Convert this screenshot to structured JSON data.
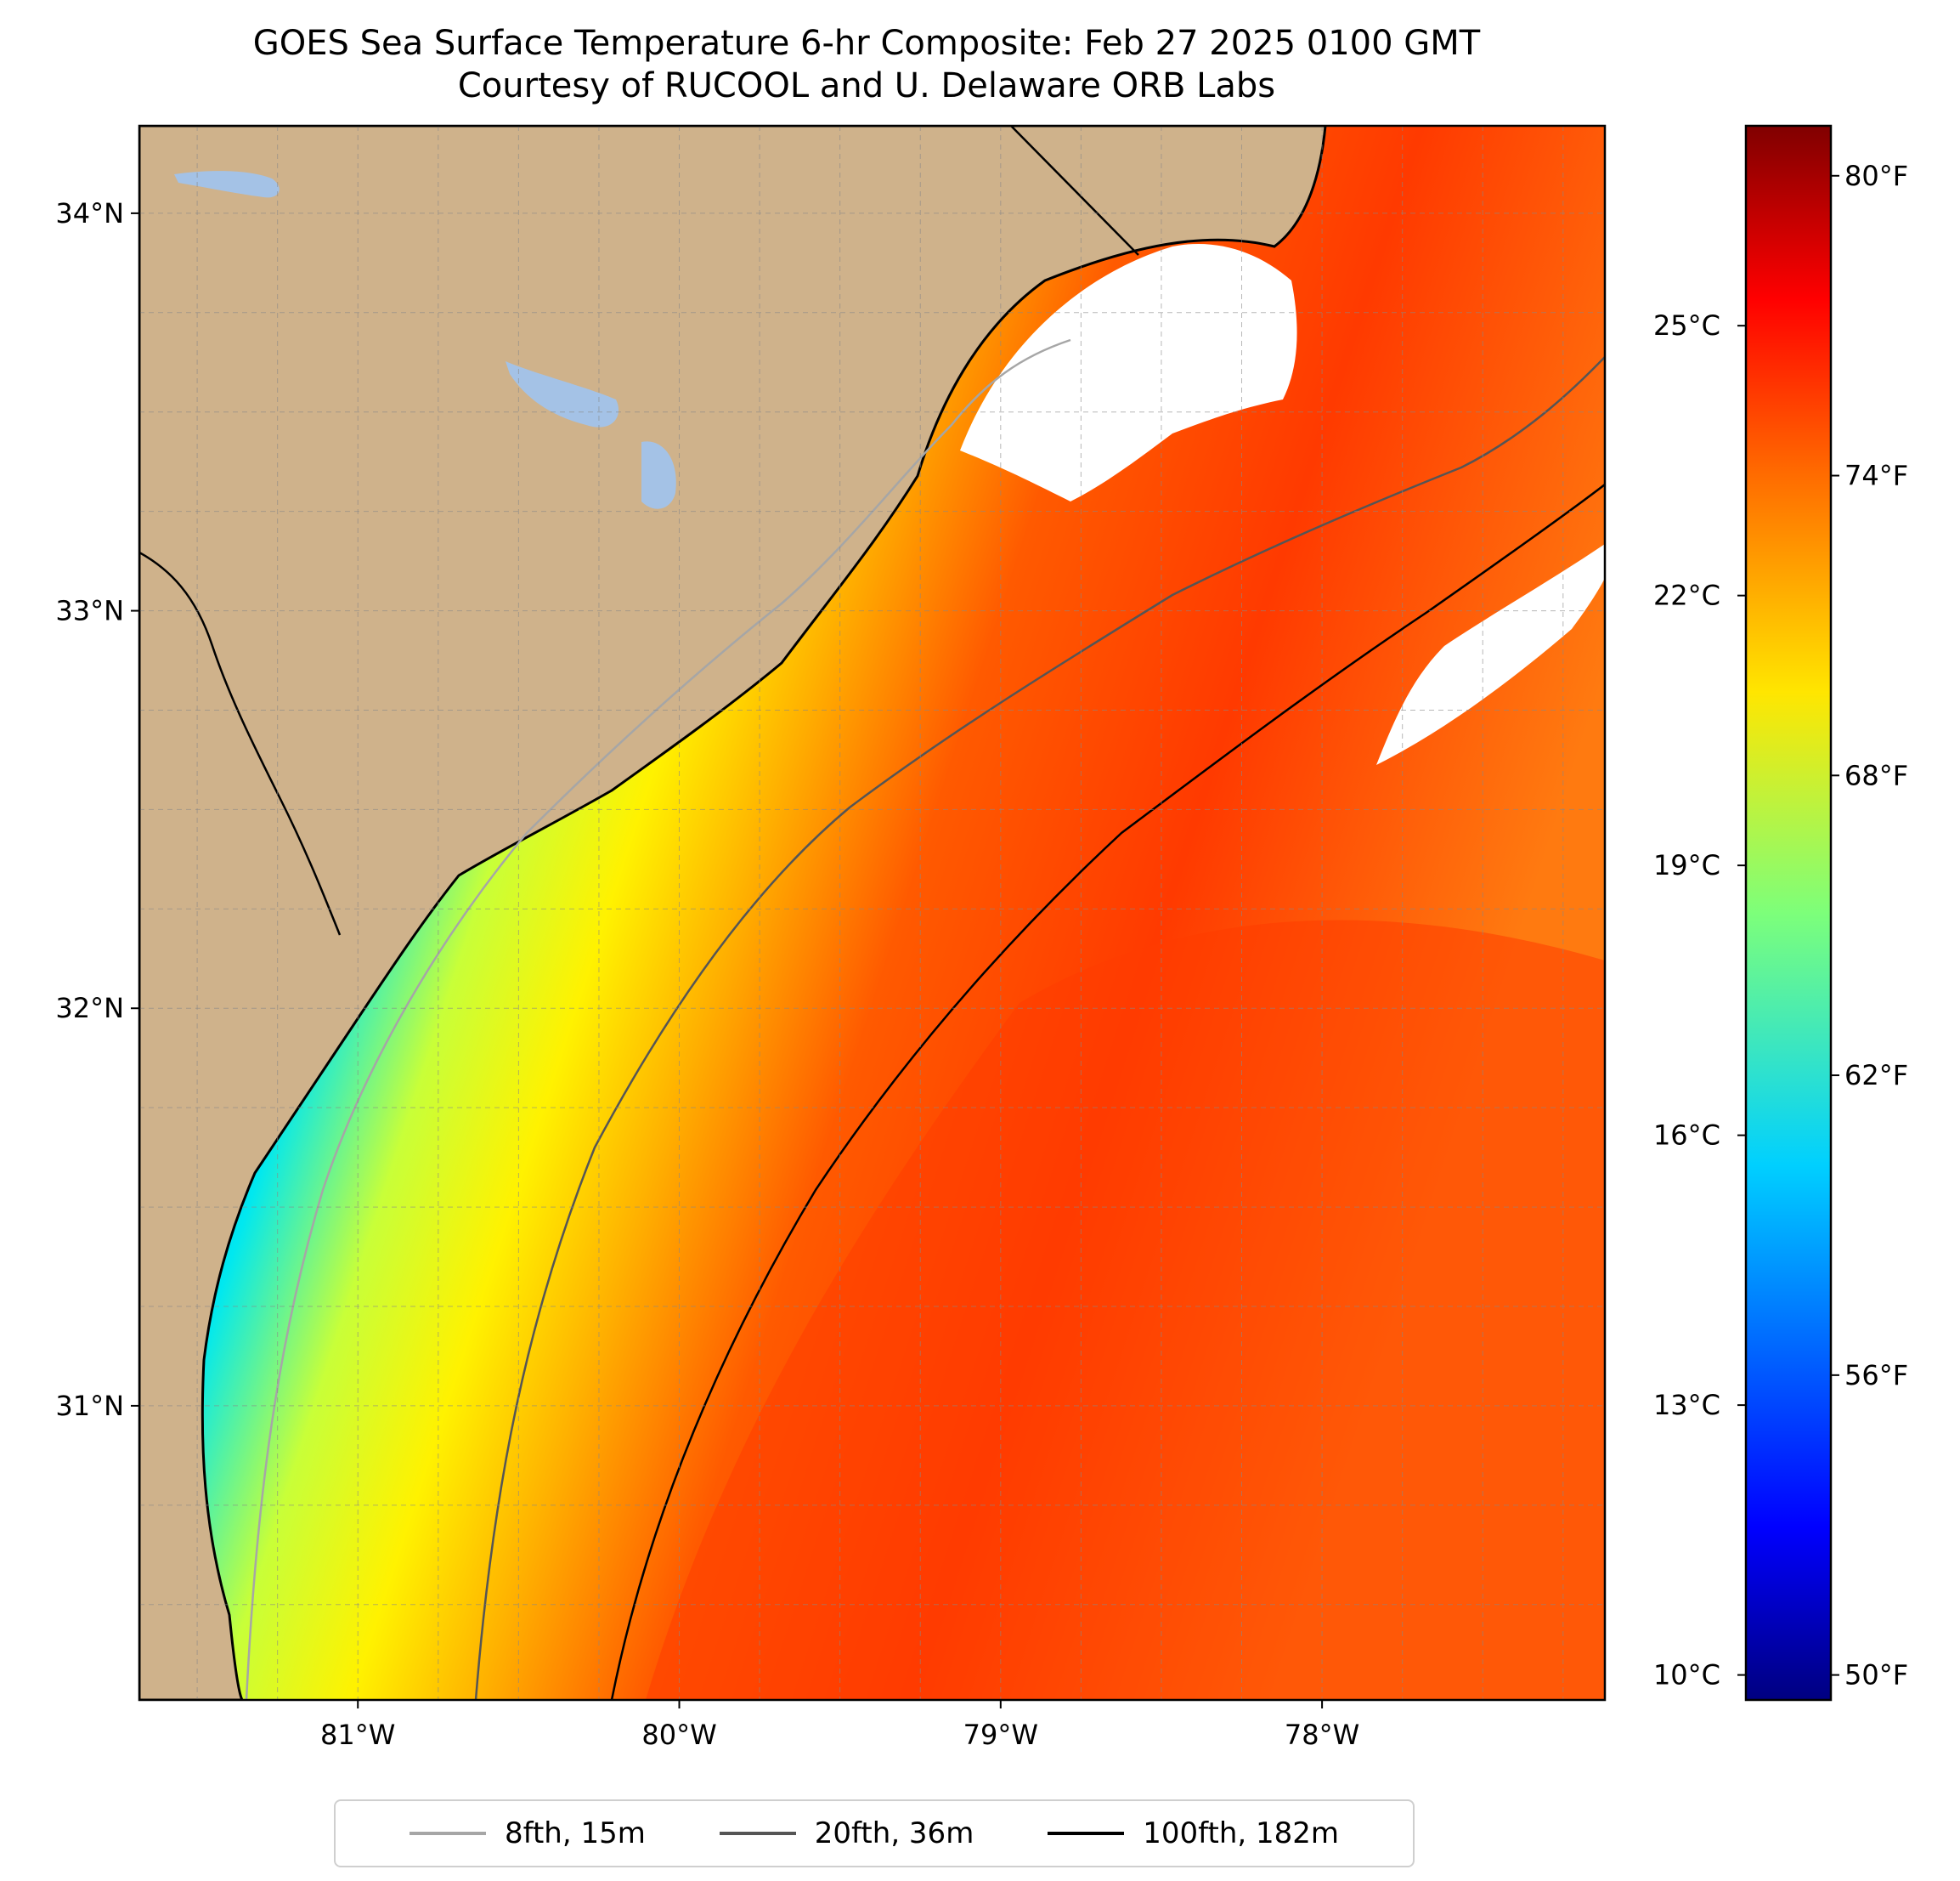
{
  "title": {
    "line1": "GOES Sea Surface Temperature 6-hr Composite: Feb 27 2025 0100 GMT",
    "line2": "Courtesy of RUCOOL and U. Delaware ORB Labs"
  },
  "axes": {
    "lat_ticks": [
      "34°N",
      "33°N",
      "32°N",
      "31°N"
    ],
    "lon_ticks": [
      "81°W",
      "80°W",
      "79°W",
      "78°W"
    ],
    "lat_values": [
      34,
      33,
      32,
      31
    ],
    "lon_values": [
      -81,
      -80,
      -79,
      -78
    ],
    "lon_range": [
      -81.68,
      -77.12
    ],
    "lat_range": [
      30.26,
      34.22
    ],
    "grid": true
  },
  "colorbar": {
    "celsius_ticks": [
      "25°C",
      "22°C",
      "19°C",
      "16°C",
      "13°C",
      "10°C"
    ],
    "celsius_values": [
      25,
      22,
      19,
      16,
      13,
      10
    ],
    "fahrenheit_ticks": [
      "80°F",
      "74°F",
      "68°F",
      "62°F",
      "56°F",
      "50°F"
    ],
    "fahrenheit_values": [
      80,
      74,
      68,
      62,
      56,
      50
    ],
    "range_f": [
      49.5,
      81
    ],
    "colormap": "jet"
  },
  "legend": {
    "items": [
      {
        "label": "8fth, 15m",
        "color": "#a6a6a6"
      },
      {
        "label": "20fth, 36m",
        "color": "#555555"
      },
      {
        "label": "100fth, 182m",
        "color": "#000000"
      }
    ]
  },
  "colors": {
    "land": "#cfb28b",
    "lake": "#a4c2e6",
    "no_data": "#ffffff"
  }
}
